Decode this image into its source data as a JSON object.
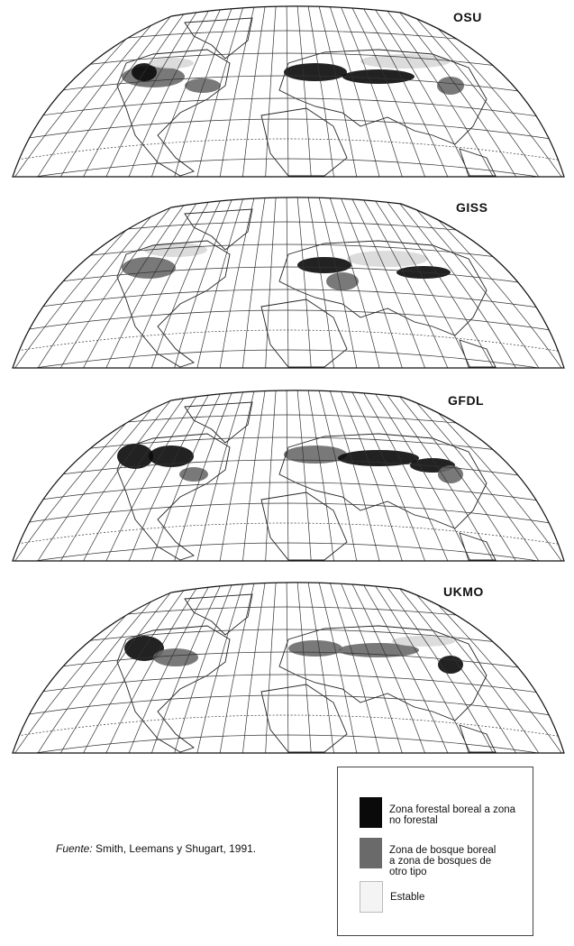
{
  "maps": [
    {
      "model": "OSU"
    },
    {
      "model": "GISS"
    },
    {
      "model": "GFDL"
    },
    {
      "model": "UKMO"
    }
  ],
  "source": {
    "label": "Fuente:",
    "text": " Smith, Leemans y Shugart, 1991."
  },
  "legend": {
    "items": [
      {
        "label": "Zona forestal boreal a zona no forestal",
        "color": "#0a0a0a"
      },
      {
        "label": "Zona de bosque boreal a zona de bosques de otro tipo",
        "color": "#6a6a6a"
      },
      {
        "label": "Estable",
        "color": "#f4f4f4"
      }
    ]
  }
}
